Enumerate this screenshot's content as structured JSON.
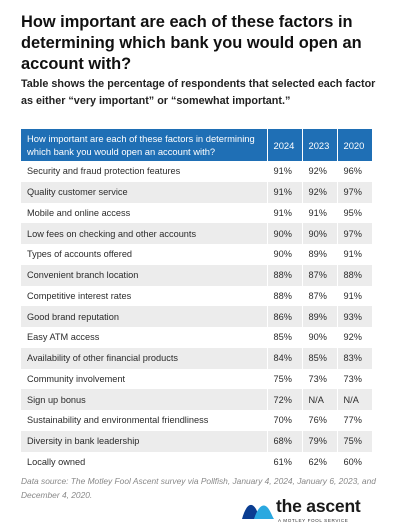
{
  "title": "How important are each of these factors in determining which bank you would open an account with?",
  "subtitle": "Table shows the percentage of respondents that selected each factor as either “very important” or “somewhat important.”",
  "chart_data": {
    "type": "table",
    "columns": [
      "How important are each of these factors in determining which bank you would open an account with?",
      "2024",
      "2023",
      "2020"
    ],
    "rows": [
      {
        "factor": "Security and fraud protection features",
        "y2024": "91%",
        "y2023": "92%",
        "y2020": "96%"
      },
      {
        "factor": "Quality customer service",
        "y2024": "91%",
        "y2023": "92%",
        "y2020": "97%"
      },
      {
        "factor": "Mobile and online access",
        "y2024": "91%",
        "y2023": "91%",
        "y2020": "95%"
      },
      {
        "factor": "Low fees on checking and other accounts",
        "y2024": "90%",
        "y2023": "90%",
        "y2020": "97%"
      },
      {
        "factor": "Types of accounts offered",
        "y2024": "90%",
        "y2023": "89%",
        "y2020": "91%"
      },
      {
        "factor": "Convenient branch location",
        "y2024": "88%",
        "y2023": "87%",
        "y2020": "88%"
      },
      {
        "factor": "Competitive interest rates",
        "y2024": "88%",
        "y2023": "87%",
        "y2020": "91%"
      },
      {
        "factor": "Good brand reputation",
        "y2024": "86%",
        "y2023": "89%",
        "y2020": "93%"
      },
      {
        "factor": "Easy ATM access",
        "y2024": "85%",
        "y2023": "90%",
        "y2020": "92%"
      },
      {
        "factor": "Availability of other financial products",
        "y2024": "84%",
        "y2023": "85%",
        "y2020": "83%"
      },
      {
        "factor": "Community involvement",
        "y2024": "75%",
        "y2023": "73%",
        "y2020": "73%"
      },
      {
        "factor": "Sign up bonus",
        "y2024": "72%",
        "y2023": "N/A",
        "y2020": "N/A"
      },
      {
        "factor": "Sustainability and environmental friendliness",
        "y2024": "70%",
        "y2023": "76%",
        "y2020": "77%"
      },
      {
        "factor": "Diversity in bank leadership",
        "y2024": "68%",
        "y2023": "79%",
        "y2020": "75%"
      },
      {
        "factor": "Locally owned",
        "y2024": "61%",
        "y2023": "62%",
        "y2020": "60%"
      }
    ]
  },
  "source": "Data source: The Motley Fool Ascent survey via Pollfish, January 4, 2024, January 6, 2023, and December 4, 2020.",
  "logo": {
    "name": "the ascent",
    "tagline": "A MOTLEY FOOL SERVICE",
    "colors": {
      "dark": "#0b3d91",
      "light": "#2aa8e0"
    }
  },
  "colors": {
    "header_bg": "#1f6fb5",
    "header_text": "#ffffff",
    "stripe": "#ececec"
  }
}
